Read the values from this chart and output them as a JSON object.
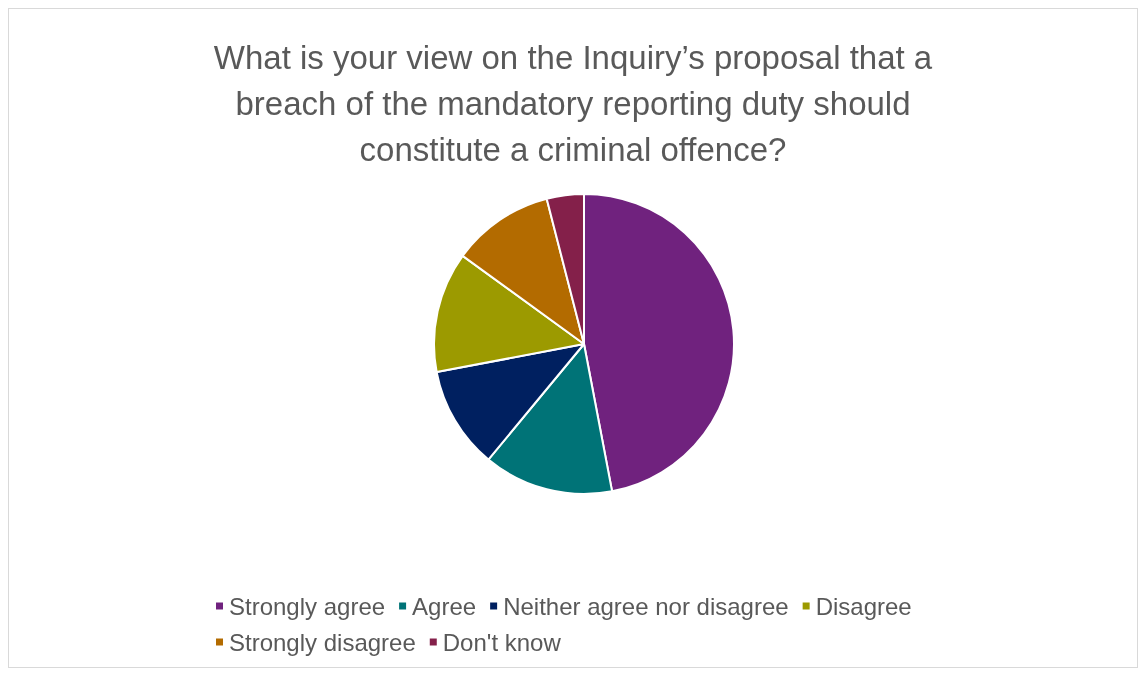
{
  "chart_data": {
    "type": "pie",
    "title": "What is your view on the Inquiry’s proposal that a\nbreach of the mandatory reporting duty should\nconstitute a criminal offence?",
    "categories": [
      "Strongly agree",
      "Agree",
      "Neither agree nor disagree",
      "Disagree",
      "Strongly disagree",
      "Don't know"
    ],
    "values": [
      47,
      14,
      11,
      13,
      11,
      4
    ],
    "colors": [
      "#70227e",
      "#007377",
      "#002060",
      "#9c9a00",
      "#b36b00",
      "#84204a"
    ],
    "legend": "bottom"
  }
}
